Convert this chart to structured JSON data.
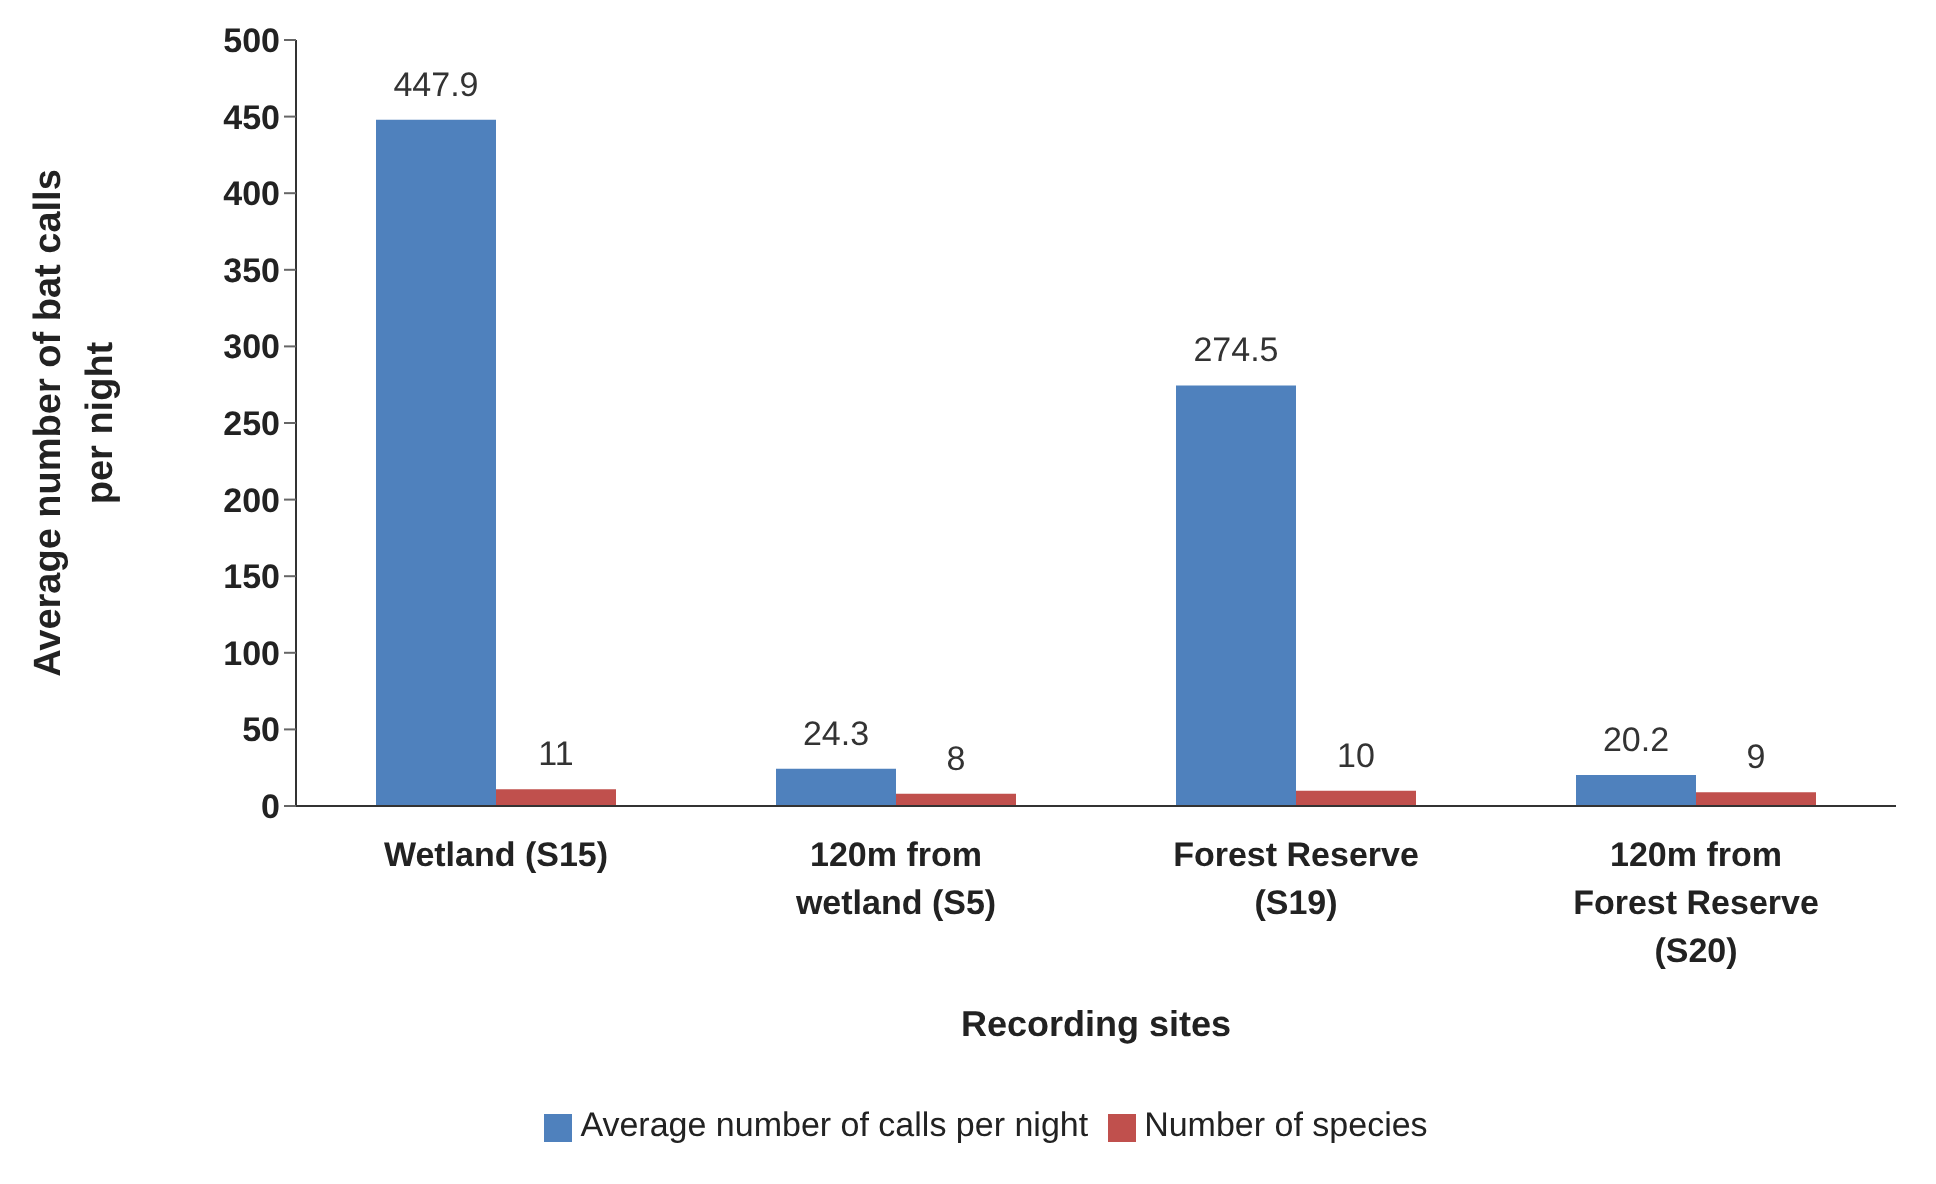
{
  "chart_data": {
    "type": "bar",
    "xlabel": "Recording sites",
    "ylabel": "Average number of bat calls per night",
    "categories": [
      "Wetland (S15)",
      "120m from wetland (S5)",
      "Forest Reserve (S19)",
      "120m from Forest Reserve (S20)"
    ],
    "series": [
      {
        "name": "Average number of calls per night",
        "color": "#4f81bd",
        "values": [
          447.9,
          24.3,
          274.5,
          20.2
        ]
      },
      {
        "name": "Number of species",
        "color": "#c0504d",
        "values": [
          11,
          8,
          10,
          9
        ]
      }
    ],
    "ylim": [
      0,
      500
    ],
    "yticks": [
      0,
      50,
      100,
      150,
      200,
      250,
      300,
      350,
      400,
      450,
      500
    ],
    "data_labels": true,
    "legend": "bottom"
  }
}
